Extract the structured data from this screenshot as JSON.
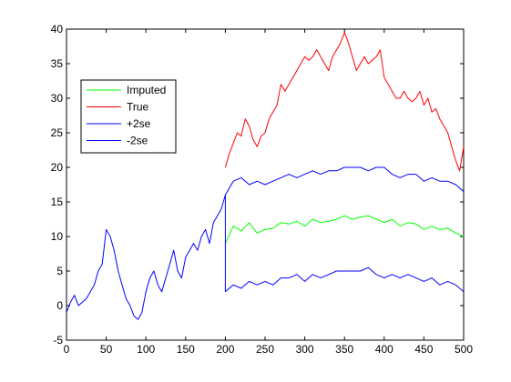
{
  "chart_data": {
    "type": "line",
    "title": "",
    "xlabel": "",
    "ylabel": "",
    "xlim": [
      0,
      500
    ],
    "ylim": [
      -5,
      40
    ],
    "xticks": [
      0,
      50,
      100,
      150,
      200,
      250,
      300,
      350,
      400,
      450,
      500
    ],
    "yticks": [
      -5,
      0,
      5,
      10,
      15,
      20,
      25,
      30,
      35,
      40
    ],
    "grid": false,
    "legend_position": "upper-left",
    "legend": [
      "Imputed",
      "True",
      "+2se",
      "-2se"
    ],
    "series": [
      {
        "name": "Imputed",
        "color": "#00ff00",
        "x": [
          200,
          210,
          220,
          230,
          240,
          250,
          260,
          270,
          280,
          290,
          300,
          310,
          320,
          330,
          340,
          350,
          360,
          370,
          380,
          390,
          400,
          410,
          420,
          430,
          440,
          450,
          460,
          470,
          480,
          490,
          500
        ],
        "y": [
          9.0,
          11.5,
          10.8,
          12.0,
          10.5,
          11.0,
          11.2,
          12.0,
          11.8,
          12.2,
          11.5,
          12.5,
          12.0,
          12.2,
          12.5,
          13.0,
          12.5,
          12.8,
          13.0,
          12.5,
          12.0,
          12.5,
          11.5,
          12.0,
          11.8,
          11.0,
          11.5,
          11.0,
          11.2,
          10.5,
          10.0
        ]
      },
      {
        "name": "True",
        "color": "#ff0000",
        "x": [
          200,
          205,
          210,
          215,
          220,
          225,
          230,
          235,
          240,
          245,
          250,
          255,
          260,
          265,
          270,
          275,
          280,
          285,
          290,
          295,
          300,
          305,
          310,
          315,
          320,
          325,
          330,
          335,
          340,
          345,
          350,
          355,
          360,
          365,
          370,
          375,
          380,
          385,
          390,
          395,
          400,
          405,
          410,
          415,
          420,
          425,
          430,
          435,
          440,
          445,
          450,
          455,
          460,
          465,
          470,
          475,
          480,
          485,
          490,
          495,
          500
        ],
        "y": [
          20,
          22,
          23.5,
          25,
          24.5,
          27,
          26,
          24,
          23,
          24.5,
          25,
          27,
          28,
          29,
          32,
          31,
          32,
          33,
          34,
          35,
          36,
          35.5,
          36,
          37,
          36,
          35,
          34,
          36,
          37,
          38,
          39.5,
          38,
          36,
          34,
          35,
          36,
          35,
          35.5,
          36,
          37,
          33,
          32,
          31,
          30,
          30,
          31,
          30,
          29.5,
          30,
          31,
          29,
          30,
          28,
          28.5,
          27,
          26,
          25,
          23,
          21,
          19.5,
          23
        ]
      },
      {
        "name": "+2se",
        "color": "#0000ff",
        "x": [
          0,
          5,
          10,
          15,
          20,
          25,
          30,
          35,
          40,
          45,
          50,
          55,
          60,
          65,
          70,
          75,
          80,
          85,
          90,
          95,
          100,
          105,
          110,
          115,
          120,
          125,
          130,
          135,
          140,
          145,
          150,
          155,
          160,
          165,
          170,
          175,
          180,
          185,
          190,
          195,
          200,
          210,
          220,
          230,
          240,
          250,
          260,
          270,
          280,
          290,
          300,
          310,
          320,
          330,
          340,
          350,
          360,
          370,
          380,
          390,
          400,
          410,
          420,
          430,
          440,
          450,
          460,
          470,
          480,
          490,
          500
        ],
        "y": [
          -1,
          0.5,
          1.5,
          0,
          0.5,
          1,
          2,
          3,
          5,
          6,
          11,
          10,
          8,
          5,
          3,
          1,
          0,
          -1.5,
          -2,
          -1,
          2,
          4,
          5,
          3,
          2,
          4,
          6,
          8,
          5,
          4,
          7,
          8,
          9,
          8,
          10,
          11,
          9,
          12,
          13,
          14,
          16,
          18,
          18.5,
          17.5,
          18,
          17.5,
          18,
          18.5,
          19,
          18.5,
          19,
          19.5,
          19,
          19.5,
          19.5,
          20,
          20,
          20,
          19.5,
          20,
          20,
          19,
          18.5,
          19,
          19,
          18,
          18.5,
          18,
          18,
          17.5,
          16.5
        ]
      },
      {
        "name": "-2se",
        "color": "#0000ff",
        "x": [
          200,
          210,
          220,
          230,
          240,
          250,
          260,
          270,
          280,
          290,
          300,
          310,
          320,
          330,
          340,
          350,
          360,
          370,
          380,
          390,
          400,
          410,
          420,
          430,
          440,
          450,
          460,
          470,
          480,
          490,
          500
        ],
        "y": [
          2,
          3,
          2.5,
          3.5,
          3,
          3.5,
          3,
          4,
          4,
          4.5,
          3.5,
          4.5,
          4,
          4.5,
          5,
          5,
          5,
          5,
          5.5,
          4.5,
          4,
          4.5,
          4,
          4.5,
          4,
          3.5,
          4,
          3,
          3.5,
          3,
          2
        ]
      }
    ]
  }
}
